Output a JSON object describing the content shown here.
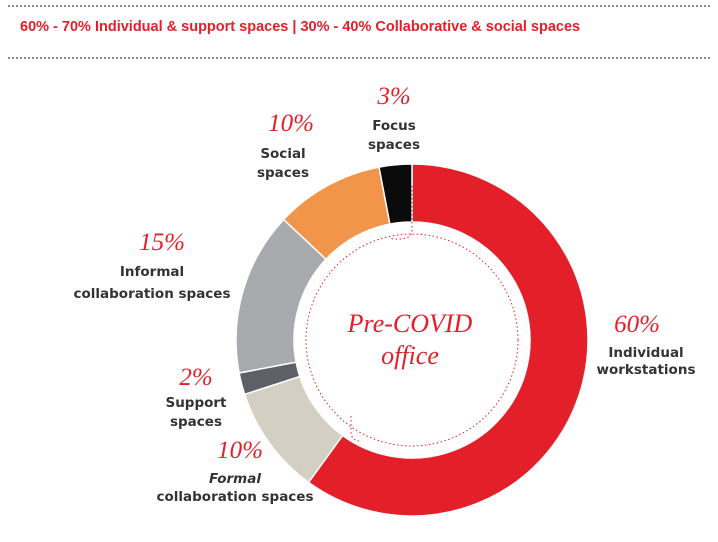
{
  "header": {
    "text": "60% - 70% Individual & support spaces | 30% - 40% Collaborative & social spaces"
  },
  "chart_data": {
    "type": "pie",
    "donut": true,
    "center_label": [
      "Pre-COVID",
      "office"
    ],
    "slices": [
      {
        "label": [
          "Individual",
          "workstations"
        ],
        "pct_label": "60%",
        "value": 60,
        "color": "#e3202a"
      },
      {
        "label": [
          "Formal",
          "collaboration spaces"
        ],
        "pct_label": "10%",
        "value": 10,
        "color": "#d3cfc3"
      },
      {
        "label": [
          "Support",
          "spaces"
        ],
        "pct_label": "2%",
        "value": 2,
        "color": "#5e6067"
      },
      {
        "label": [
          "Informal",
          "collaboration spaces"
        ],
        "pct_label": "15%",
        "value": 15,
        "color": "#a8aaae"
      },
      {
        "label": [
          "Social",
          "spaces"
        ],
        "pct_label": "10%",
        "value": 10,
        "color": "#f0954a"
      },
      {
        "label": [
          "Focus",
          "spaces"
        ],
        "pct_label": "3%",
        "value": 3,
        "color": "#0b0b0b"
      }
    ]
  }
}
